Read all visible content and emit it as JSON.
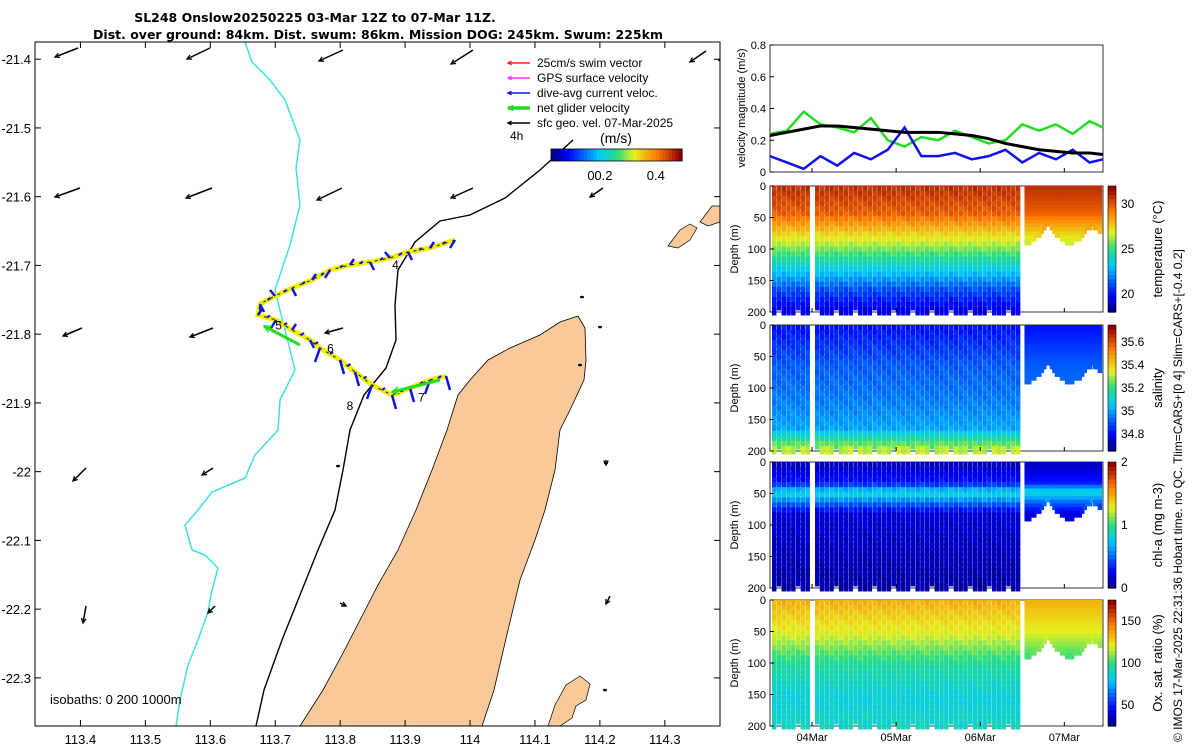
{
  "title_line1": "SL248 Onslow20250225 03-Mar 12Z to 07-Mar 11Z.",
  "title_line2": "Dist. over ground: 84km. Dist. swum: 86km. Mission DOG: 245km. Swum: 225km",
  "copyright": "© IMOS 17-Mar-2025 22:31:36 Hobart time. no QC. Tlim=CARS+[0 4] Slim=CARS+[-0.4 0.2]",
  "colors": {
    "land": "#f9c99a",
    "shelf_isobath": "#40e0e0",
    "deep_isobath": "#000000",
    "track": "#f0f000",
    "net_velocity": "#22dd22",
    "current": "#1010f0",
    "swim": "#ff2020",
    "gps": "#ff30ff"
  },
  "map": {
    "xticks": [
      "113.4",
      "113.5",
      "113.6",
      "113.7",
      "113.8",
      "113.9",
      "114",
      "114.1",
      "114.2",
      "114.3"
    ],
    "yticks": [
      "-21.4",
      "-21.5",
      "-21.6",
      "-21.7",
      "-21.8",
      "-21.9",
      "-22",
      "-22.1",
      "-22.2",
      "-22.3"
    ],
    "legend": [
      {
        "label": "25cm/s swim vector",
        "color": "#ff2020"
      },
      {
        "label": "GPS surface velocity",
        "color": "#ff30ff"
      },
      {
        "label": "dive-avg current veloc.",
        "color": "#1010f0"
      },
      {
        "label": "net glider velocity",
        "color": "#22dd22"
      },
      {
        "label": "sfc geo. vel. 07-Mar-2025",
        "color": "#000000"
      }
    ],
    "time_marker_label": "4h",
    "colorbar_unit": "(m/s)",
    "colorbar_ticks": [
      "0",
      "0.2",
      "0.4"
    ],
    "isobaths_label": "isobaths: 0   200  1000m",
    "day_labels": [
      {
        "text": "4",
        "lon": 113.88,
        "lat": -21.705
      },
      {
        "text": "5",
        "lon": 113.7,
        "lat": -21.793
      },
      {
        "text": "6",
        "lon": 113.78,
        "lat": -21.827
      },
      {
        "text": "7",
        "lon": 113.92,
        "lat": -21.898
      },
      {
        "text": "8",
        "lon": 113.81,
        "lat": -21.91
      }
    ]
  },
  "chart_data": [
    {
      "type": "line",
      "title": "",
      "xlabel": "",
      "ylabel": "velocity magnitude (m/s)",
      "ylim": [
        0,
        0.8
      ],
      "yticks": [
        "0",
        "0.2",
        "0.4",
        "0.6",
        "0.8"
      ],
      "x_days": [
        3.5,
        3.7,
        3.9,
        4.1,
        4.3,
        4.5,
        4.7,
        4.9,
        5.1,
        5.3,
        5.5,
        5.7,
        5.9,
        6.1,
        6.3,
        6.5,
        6.7,
        6.9,
        7.1,
        7.3,
        7.46
      ],
      "series": [
        {
          "name": "net glider velocity",
          "color": "#22dd22",
          "values": [
            0.24,
            0.26,
            0.38,
            0.3,
            0.28,
            0.25,
            0.34,
            0.2,
            0.16,
            0.22,
            0.2,
            0.26,
            0.22,
            0.18,
            0.2,
            0.3,
            0.26,
            0.3,
            0.24,
            0.32,
            0.28
          ]
        },
        {
          "name": "dive-avg current veloc.",
          "color": "#1010f0",
          "values": [
            0.1,
            0.06,
            0.02,
            0.1,
            0.04,
            0.12,
            0.08,
            0.14,
            0.28,
            0.1,
            0.1,
            0.12,
            0.08,
            0.1,
            0.14,
            0.06,
            0.12,
            0.08,
            0.14,
            0.06,
            0.08
          ]
        },
        {
          "name": "sfc geo. vel.",
          "color": "#000000",
          "values": [
            0.23,
            0.25,
            0.27,
            0.29,
            0.29,
            0.28,
            0.27,
            0.26,
            0.25,
            0.25,
            0.25,
            0.24,
            0.23,
            0.21,
            0.18,
            0.16,
            0.14,
            0.13,
            0.12,
            0.12,
            0.11
          ]
        }
      ]
    },
    {
      "type": "heatmap",
      "variable": "temperature",
      "ylabel": "Depth (m)",
      "colorbar_label": "temperature (°C)",
      "clim": [
        18,
        32
      ],
      "colorbar_ticks": [
        "20",
        "25",
        "30"
      ],
      "depth_ticks": [
        "0",
        "50",
        "100",
        "150",
        "200"
      ],
      "depth_profile": [
        {
          "depth": 0,
          "value": 31
        },
        {
          "depth": 40,
          "value": 30
        },
        {
          "depth": 80,
          "value": 27
        },
        {
          "depth": 120,
          "value": 24
        },
        {
          "depth": 160,
          "value": 21
        },
        {
          "depth": 200,
          "value": 19
        }
      ]
    },
    {
      "type": "heatmap",
      "variable": "salinity",
      "ylabel": "Depth (m)",
      "colorbar_label": "salinity",
      "clim": [
        34.65,
        35.75
      ],
      "colorbar_ticks": [
        "34.8",
        "35",
        "35.2",
        "35.4",
        "35.6"
      ],
      "depth_ticks": [
        "0",
        "50",
        "100",
        "150",
        "200"
      ],
      "depth_profile": [
        {
          "depth": 0,
          "value": 34.8
        },
        {
          "depth": 60,
          "value": 34.9
        },
        {
          "depth": 120,
          "value": 34.95
        },
        {
          "depth": 160,
          "value": 35.0
        },
        {
          "depth": 185,
          "value": 35.25
        },
        {
          "depth": 200,
          "value": 35.4
        }
      ]
    },
    {
      "type": "heatmap",
      "variable": "chl-a",
      "ylabel": "Depth (m)",
      "colorbar_label": "chl-a (mg m-3)",
      "clim": [
        0,
        2
      ],
      "colorbar_ticks": [
        "0",
        "1",
        "2"
      ],
      "depth_ticks": [
        "0",
        "50",
        "100",
        "150",
        "200"
      ],
      "depth_profile": [
        {
          "depth": 0,
          "value": 0.1
        },
        {
          "depth": 30,
          "value": 0.3
        },
        {
          "depth": 45,
          "value": 0.85
        },
        {
          "depth": 60,
          "value": 0.5
        },
        {
          "depth": 80,
          "value": 0.15
        },
        {
          "depth": 200,
          "value": 0.05
        }
      ]
    },
    {
      "type": "heatmap",
      "variable": "oxygen saturation",
      "ylabel": "Depth (m)",
      "colorbar_label": "Ox. sat. ratio (%)",
      "clim": [
        25,
        175
      ],
      "colorbar_ticks": [
        "50",
        "100",
        "150"
      ],
      "depth_ticks": [
        "0",
        "50",
        "100",
        "150",
        "200"
      ],
      "depth_profile": [
        {
          "depth": 0,
          "value": 135
        },
        {
          "depth": 50,
          "value": 120
        },
        {
          "depth": 100,
          "value": 95
        },
        {
          "depth": 150,
          "value": 85
        },
        {
          "depth": 200,
          "value": 90
        }
      ]
    }
  ],
  "time_axis": {
    "ticks": [
      "04Mar",
      "05Mar",
      "06Mar",
      "07Mar"
    ],
    "tick_days": [
      4,
      5,
      6,
      7
    ],
    "xlim_days": [
      3.5,
      7.46
    ]
  }
}
